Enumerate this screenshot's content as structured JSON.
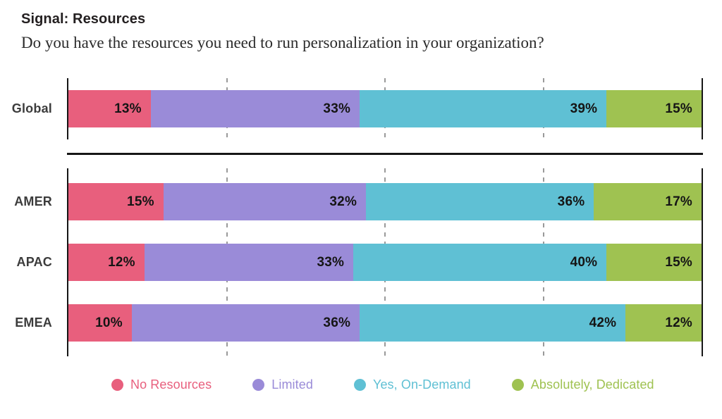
{
  "header": {
    "title": "Signal: Resources",
    "subtitle": "Do you have the resources you need to run personalization in your organization?"
  },
  "chart_data": {
    "type": "bar",
    "orientation": "horizontal",
    "stacked": true,
    "unit": "%",
    "xlim": [
      0,
      100
    ],
    "gridlines_pct": [
      25,
      50,
      75
    ],
    "grid": "vertical-dashed",
    "legend_position": "bottom",
    "series_names": [
      "No Resources",
      "Limited",
      "Yes, On-Demand",
      "Absolutely, Dedicated"
    ],
    "series_colors": [
      "#e85f7d",
      "#9a8bd8",
      "#5fc0d4",
      "#9fc251"
    ],
    "panels": [
      {
        "rows": [
          {
            "category": "Global",
            "values": [
              13,
              33,
              39,
              15
            ]
          }
        ]
      },
      {
        "rows": [
          {
            "category": "AMER",
            "values": [
              15,
              32,
              36,
              17
            ]
          },
          {
            "category": "APAC",
            "values": [
              12,
              33,
              40,
              15
            ]
          },
          {
            "category": "EMEA",
            "values": [
              10,
              36,
              42,
              12
            ]
          }
        ]
      }
    ]
  },
  "legend": {
    "items": [
      {
        "label": "No Resources",
        "color": "#e85f7d"
      },
      {
        "label": "Limited",
        "color": "#9a8bd8"
      },
      {
        "label": "Yes, On-Demand",
        "color": "#5fc0d4"
      },
      {
        "label": "Absolutely, Dedicated",
        "color": "#9fc251"
      }
    ]
  }
}
